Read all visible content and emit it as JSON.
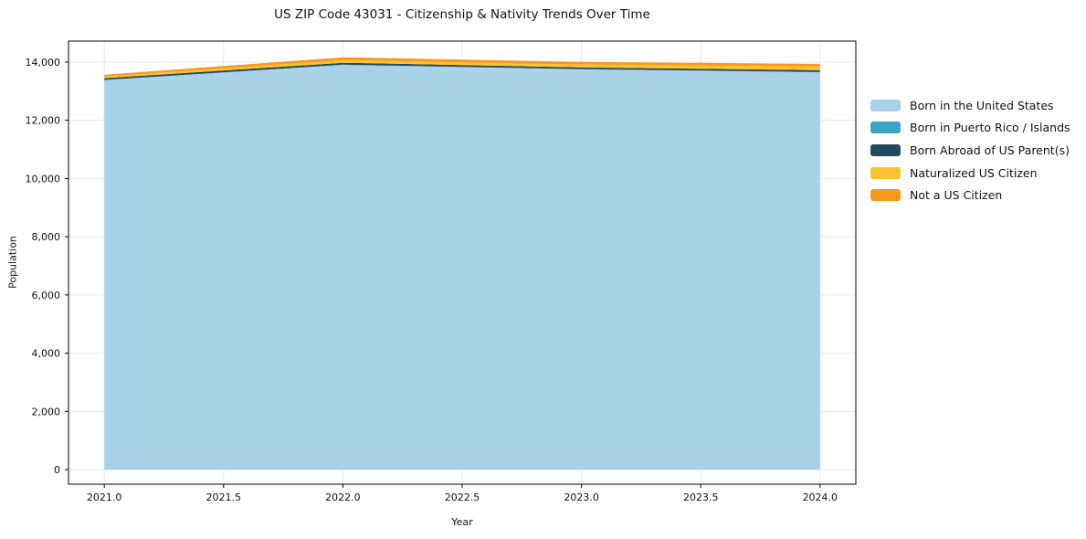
{
  "chart_data": {
    "type": "area",
    "stacked": true,
    "title": "US ZIP Code 43031 - Citizenship & Nativity Trends Over Time",
    "xlabel": "Year",
    "ylabel": "Population",
    "x": [
      2021,
      2022,
      2023,
      2024
    ],
    "series": [
      {
        "name": "Born in the United States",
        "color": "#a8d2e8",
        "values": [
          13380,
          13900,
          13750,
          13650
        ]
      },
      {
        "name": "Born in Puerto Rico / Islands",
        "color": "#3fa5c2",
        "values": [
          5,
          10,
          10,
          8
        ]
      },
      {
        "name": "Born Abroad of US Parent(s)",
        "color": "#25495c",
        "values": [
          60,
          65,
          60,
          60
        ]
      },
      {
        "name": "Naturalized US Citizen",
        "color": "#fcc22d",
        "values": [
          60,
          95,
          95,
          125
        ]
      },
      {
        "name": "Not a US Citizen",
        "color": "#f8991d",
        "values": [
          60,
          95,
          90,
          95
        ]
      }
    ],
    "xlim": [
      2020.85,
      2024.15
    ],
    "ylim": [
      -500,
      14720
    ],
    "xticks": [
      2021.0,
      2021.5,
      2022.0,
      2022.5,
      2023.0,
      2023.5,
      2024.0
    ],
    "xtick_labels": [
      "2021.0",
      "2021.5",
      "2022.0",
      "2022.5",
      "2023.0",
      "2023.5",
      "2024.0"
    ],
    "yticks": [
      0,
      2000,
      4000,
      6000,
      8000,
      10000,
      12000,
      14000
    ],
    "ytick_labels": [
      "0",
      "2,000",
      "4,000",
      "6,000",
      "8,000",
      "10,000",
      "12,000",
      "14,000"
    ],
    "grid": true,
    "legend_position": "right",
    "colors": {
      "grid": "#e9e9e9",
      "frame": "#000000",
      "tick_text": "#111111",
      "background": "#ffffff"
    }
  }
}
